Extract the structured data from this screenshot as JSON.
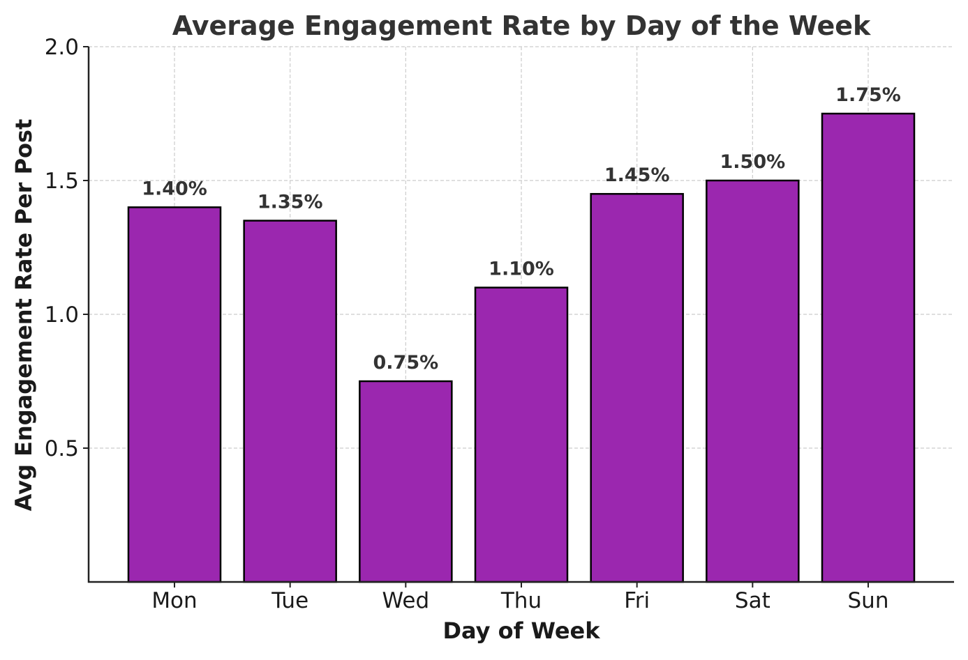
{
  "chart_data": {
    "type": "bar",
    "title": "Average Engagement Rate by Day of the Week",
    "xlabel": "Day of Week",
    "ylabel": "Avg Engagement Rate Per Post",
    "categories": [
      "Mon",
      "Tue",
      "Wed",
      "Thu",
      "Fri",
      "Sat",
      "Sun"
    ],
    "values": [
      1.4,
      1.35,
      0.75,
      1.1,
      1.45,
      1.5,
      1.75
    ],
    "value_labels": [
      "1.40%",
      "1.35%",
      "0.75%",
      "1.10%",
      "1.45%",
      "1.50%",
      "1.75%"
    ],
    "ylim": [
      0,
      2.0
    ],
    "yticks": [
      0.5,
      1.0,
      1.5,
      2.0
    ],
    "ytick_labels": [
      "0.5",
      "1.0",
      "1.5",
      "2.0"
    ],
    "grid": true,
    "colors": {
      "bar_fill": "#9B27AF",
      "bar_edge": "#000000",
      "grid": "#cccccc",
      "axis": "#222222",
      "title_text": "#333333",
      "label_text": "#1a1a1a",
      "value_label_text": "#333333"
    }
  }
}
